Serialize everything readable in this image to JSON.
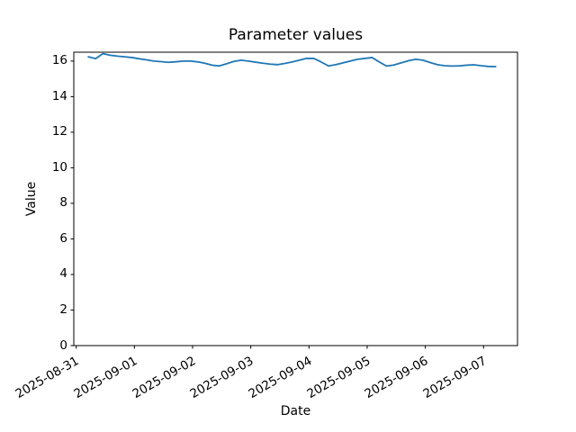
{
  "chart_data": {
    "type": "line",
    "title": "Parameter values",
    "xlabel": "Date",
    "ylabel": "Value",
    "background_color": "#ffffff",
    "line_color": "#1f77b4",
    "axis_color": "#000000",
    "grid": false,
    "legend": null,
    "ylim": [
      0,
      16.5
    ],
    "y_ticks": [
      0,
      2,
      4,
      6,
      8,
      10,
      12,
      14,
      16
    ],
    "x_tick_labels": [
      "2025-08-31",
      "2025-09-01",
      "2025-09-02",
      "2025-09-03",
      "2025-09-04",
      "2025-09-05",
      "2025-09-06",
      "2025-09-07"
    ],
    "x_tick_rotation_deg": 30,
    "xlim": [
      "2025-08-30 23:00",
      "2025-09-07 14:00"
    ],
    "series": [
      {
        "name": "parameter-values",
        "x": [
          "2025-08-31 05:00",
          "2025-08-31 08:00",
          "2025-08-31 11:00",
          "2025-08-31 14:00",
          "2025-08-31 17:00",
          "2025-08-31 20:00",
          "2025-08-31 23:00",
          "2025-09-01 02:00",
          "2025-09-01 05:00",
          "2025-09-01 08:00",
          "2025-09-01 11:00",
          "2025-09-01 14:00",
          "2025-09-01 17:00",
          "2025-09-01 20:00",
          "2025-09-01 23:00",
          "2025-09-02 02:00",
          "2025-09-02 05:00",
          "2025-09-02 08:00",
          "2025-09-02 11:00",
          "2025-09-02 14:00",
          "2025-09-02 17:00",
          "2025-09-02 20:00",
          "2025-09-02 23:00",
          "2025-09-03 02:00",
          "2025-09-03 05:00",
          "2025-09-03 08:00",
          "2025-09-03 11:00",
          "2025-09-03 14:00",
          "2025-09-03 17:00",
          "2025-09-03 20:00",
          "2025-09-03 23:00",
          "2025-09-04 02:00",
          "2025-09-04 05:00",
          "2025-09-04 08:00",
          "2025-09-04 11:00",
          "2025-09-04 14:00",
          "2025-09-04 17:00",
          "2025-09-04 20:00",
          "2025-09-04 23:00",
          "2025-09-05 02:00",
          "2025-09-05 05:00",
          "2025-09-05 08:00",
          "2025-09-05 11:00",
          "2025-09-05 14:00",
          "2025-09-05 17:00",
          "2025-09-05 20:00",
          "2025-09-05 23:00",
          "2025-09-06 02:00",
          "2025-09-06 05:00",
          "2025-09-06 08:00",
          "2025-09-06 11:00",
          "2025-09-06 14:00",
          "2025-09-06 17:00",
          "2025-09-06 20:00",
          "2025-09-06 23:00",
          "2025-09-07 02:00",
          "2025-09-07 05:00"
        ],
        "y": [
          16.24,
          16.14,
          16.42,
          16.33,
          16.28,
          16.24,
          16.2,
          16.13,
          16.07,
          16.0,
          15.97,
          15.93,
          15.96,
          16.0,
          16.0,
          15.96,
          15.88,
          15.77,
          15.73,
          15.85,
          15.98,
          16.05,
          16.0,
          15.94,
          15.88,
          15.83,
          15.8,
          15.87,
          15.95,
          16.05,
          16.15,
          16.15,
          15.95,
          15.73,
          15.8,
          15.9,
          16.0,
          16.1,
          16.15,
          16.2,
          15.95,
          15.72,
          15.78,
          15.9,
          16.02,
          16.1,
          16.05,
          15.92,
          15.8,
          15.74,
          15.72,
          15.73,
          15.77,
          15.79,
          15.74,
          15.7,
          15.69
        ]
      }
    ]
  }
}
